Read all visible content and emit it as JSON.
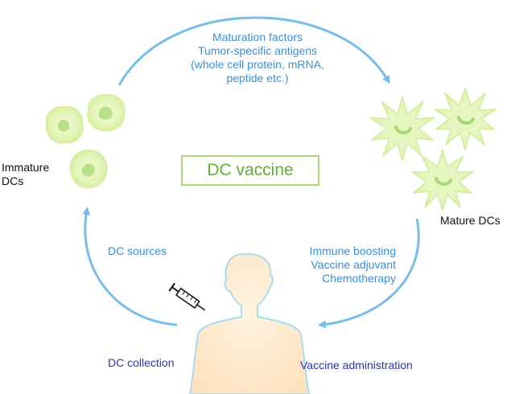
{
  "title": "DC vaccine",
  "labels": {
    "maturation": [
      "Maturation factors",
      "Tumor-specific antigens",
      "(whole cell protein, mRNA,",
      "peptide etc.)"
    ],
    "immature": [
      "Immature",
      "DCs"
    ],
    "mature": "Mature DCs",
    "dc_sources": "DC sources",
    "boosting": [
      "Immune boosting",
      "Vaccine adjuvant",
      "Chemotherapy"
    ],
    "dc_collection": "DC collection",
    "vaccine_administration": "Vaccine administration"
  },
  "colors": {
    "arrow": "#78bde9",
    "label_blue": "#3a8fd6",
    "label_navy": "#2e33a8",
    "cell_green": "#dff3b0",
    "cell_core": "#b6e08a",
    "title_green": "#5db031",
    "body_fill": "#fde8cc",
    "body_outline": "#a8dcef"
  },
  "icons": [
    "syringe-icon",
    "human-figure",
    "immature-dc-cell",
    "mature-dc-cell"
  ]
}
